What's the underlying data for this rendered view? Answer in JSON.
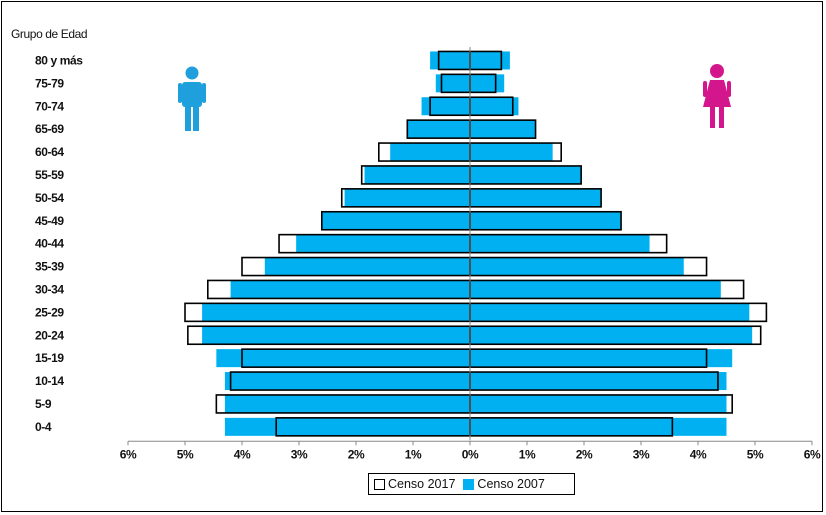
{
  "chart_data": {
    "type": "bar",
    "orientation": "horizontal-population-pyramid",
    "y_title": "Grupo de Edad",
    "categories": [
      "80 y más",
      "75-79",
      "70-74",
      "65-69",
      "60-64",
      "55-59",
      "50-54",
      "45-49",
      "40-44",
      "35-39",
      "30-34",
      "25-29",
      "20-24",
      "15-19",
      "10-14",
      "5-9",
      "0-4"
    ],
    "x_ticks": [
      "6%",
      "5%",
      "4%",
      "3%",
      "2%",
      "1%",
      "0%",
      "1%",
      "2%",
      "3%",
      "4%",
      "5%",
      "6%"
    ],
    "xlim": [
      -6,
      6
    ],
    "series": [
      {
        "name": "Censo 2017",
        "color": "#ffffff",
        "edge": "#000000",
        "male": [
          0.55,
          0.5,
          0.7,
          1.1,
          1.6,
          1.9,
          2.25,
          2.6,
          3.35,
          4.0,
          4.6,
          5.0,
          4.95,
          4.0,
          4.2,
          4.45,
          3.4
        ],
        "female": [
          0.55,
          0.45,
          0.75,
          1.15,
          1.6,
          1.95,
          2.3,
          2.65,
          3.45,
          4.15,
          4.8,
          5.2,
          5.1,
          4.15,
          4.35,
          4.6,
          3.55
        ]
      },
      {
        "name": "Censo 2007",
        "color": "#00b0f0",
        "edge": "#00b0f0",
        "male": [
          0.7,
          0.6,
          0.85,
          1.1,
          1.4,
          1.85,
          2.2,
          2.6,
          3.05,
          3.6,
          4.2,
          4.7,
          4.7,
          4.45,
          4.3,
          4.3,
          4.3
        ],
        "female": [
          0.7,
          0.6,
          0.85,
          1.15,
          1.45,
          1.95,
          2.3,
          2.65,
          3.15,
          3.75,
          4.4,
          4.9,
          4.95,
          4.6,
          4.5,
          4.5,
          4.5
        ]
      }
    ],
    "legend_position": "bottom-center",
    "grid": false
  },
  "legend": {
    "item1": "Censo 2017",
    "item2": "Censo 2007"
  },
  "icons": {
    "male": "male-person-icon",
    "female": "female-person-icon",
    "male_color": "#1fa0dc",
    "female_color": "#d4168c"
  }
}
